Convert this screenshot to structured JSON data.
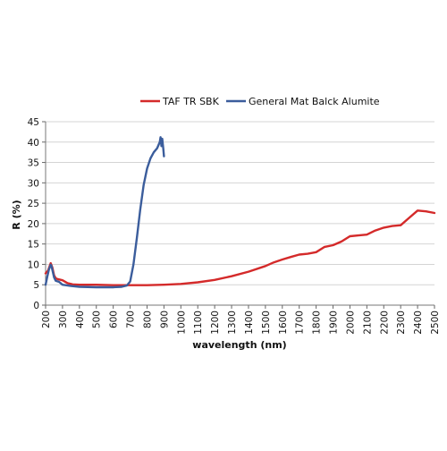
{
  "chart_data": {
    "type": "line",
    "title": "",
    "xlabel": "wavelength (nm)",
    "ylabel": "R (%)",
    "xlim": [
      200,
      2500
    ],
    "ylim": [
      0,
      45
    ],
    "x_ticks": [
      200,
      300,
      400,
      500,
      600,
      700,
      800,
      900,
      1000,
      1100,
      1200,
      1300,
      1400,
      1500,
      1600,
      1700,
      1800,
      1900,
      2000,
      2100,
      2200,
      2300,
      2400,
      2500
    ],
    "y_ticks": [
      0,
      5,
      10,
      15,
      20,
      25,
      30,
      35,
      40,
      45
    ],
    "y_tick_labels": [
      "0",
      "5",
      "10",
      "15",
      "20",
      "25",
      "30",
      "35",
      "40",
      "45"
    ],
    "grid": true,
    "legend_position": "top",
    "series": [
      {
        "name": "TAF TR SBK",
        "color": "#d42a2a",
        "x": [
          200,
          215,
          230,
          240,
          250,
          260,
          270,
          300,
          330,
          360,
          400,
          500,
          600,
          700,
          800,
          900,
          1000,
          1100,
          1200,
          1300,
          1400,
          1500,
          1550,
          1600,
          1650,
          1700,
          1750,
          1800,
          1850,
          1900,
          1950,
          2000,
          2050,
          2100,
          2150,
          2200,
          2250,
          2300,
          2350,
          2400,
          2450,
          2500
        ],
        "y": [
          7.8,
          8.5,
          10.3,
          9.2,
          7.3,
          6.6,
          6.4,
          6.1,
          5.4,
          5.1,
          5.0,
          5.0,
          4.9,
          4.9,
          4.9,
          5.0,
          5.2,
          5.6,
          6.2,
          7.1,
          8.2,
          9.6,
          10.5,
          11.2,
          11.8,
          12.4,
          12.6,
          13.0,
          14.3,
          14.7,
          15.6,
          16.9,
          17.1,
          17.3,
          18.3,
          19.0,
          19.4,
          19.6,
          21.4,
          23.2,
          23.0,
          22.6
        ]
      },
      {
        "name": "General Mat Balck Alumite",
        "color": "#3b5d9c",
        "x": [
          200,
          210,
          220,
          230,
          235,
          240,
          250,
          260,
          280,
          300,
          350,
          400,
          500,
          600,
          650,
          680,
          700,
          720,
          740,
          760,
          780,
          800,
          820,
          840,
          860,
          870,
          875,
          880,
          885,
          890,
          893,
          896,
          900
        ],
        "y": [
          5.0,
          7.0,
          8.8,
          9.9,
          9.6,
          8.6,
          6.8,
          6.0,
          5.7,
          5.0,
          4.7,
          4.5,
          4.4,
          4.4,
          4.5,
          4.8,
          5.8,
          10.0,
          16.5,
          23.5,
          29.5,
          33.5,
          36.0,
          37.5,
          38.5,
          39.5,
          40.0,
          41.2,
          39.0,
          40.8,
          39.5,
          38.5,
          36.5
        ]
      }
    ]
  }
}
